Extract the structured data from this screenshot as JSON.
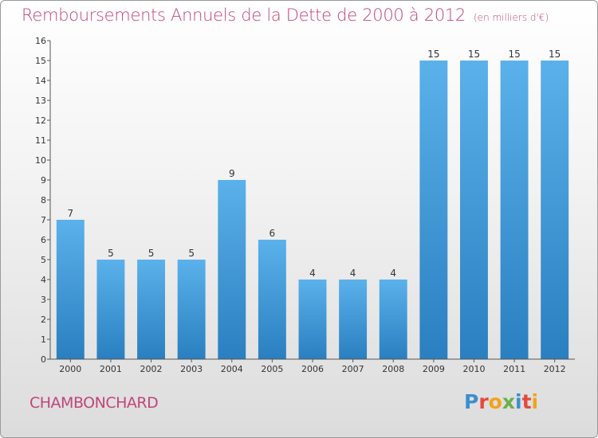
{
  "title": "Remboursements Annuels de la Dette de 2000 à 2012",
  "unit_label": "(en milliers d'€)",
  "commune": "CHAMBONCHARD",
  "logo": {
    "text": "Proxiti",
    "letter_colors": [
      "#3a8fd0",
      "#e24b3c",
      "#f3a21b",
      "#6ab04c",
      "#3a8fd0",
      "#e24b3c",
      "#f3a21b"
    ]
  },
  "colors": {
    "bar_top": "#5bb1ea",
    "bar_bottom": "#2a7fc0",
    "title": "#c1457a"
  },
  "chart_data": {
    "type": "bar",
    "title": "Remboursements Annuels de la Dette de 2000 à 2012",
    "xlabel": "",
    "ylabel": "",
    "categories": [
      "2000",
      "2001",
      "2002",
      "2003",
      "2004",
      "2005",
      "2006",
      "2007",
      "2008",
      "2009",
      "2010",
      "2011",
      "2012"
    ],
    "values": [
      7,
      5,
      5,
      5,
      9,
      6,
      4,
      4,
      4,
      15,
      15,
      15,
      15
    ],
    "ylim": [
      0,
      16
    ],
    "yticks": [
      0,
      1,
      2,
      3,
      4,
      5,
      6,
      7,
      8,
      9,
      10,
      11,
      12,
      13,
      14,
      15,
      16
    ],
    "grid": false,
    "legend": "none"
  }
}
